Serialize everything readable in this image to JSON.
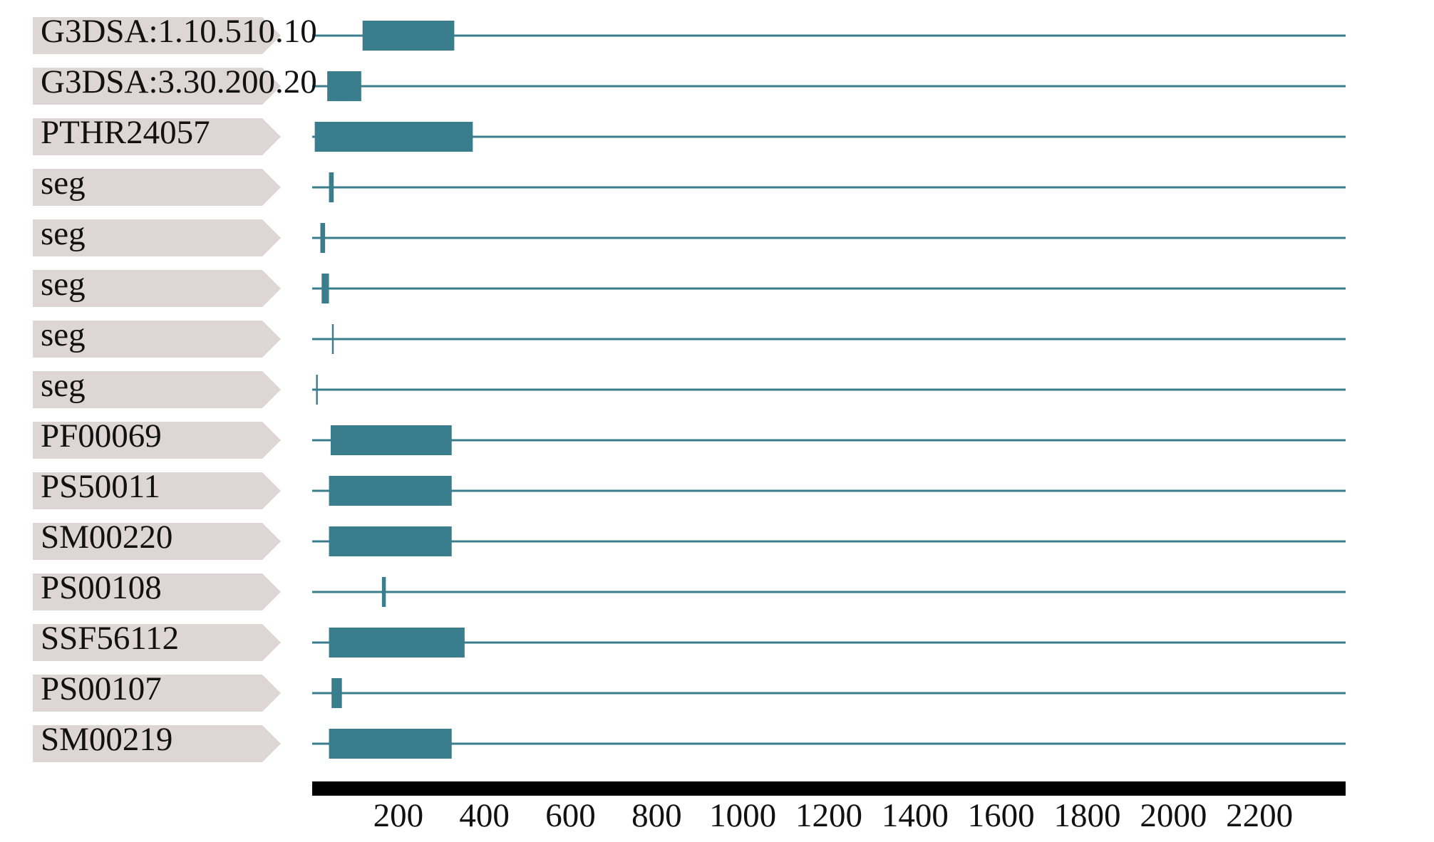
{
  "chart_data": {
    "type": "domains",
    "color": "#3a7e8d",
    "label_color": "#ddd6d5",
    "xlim": [
      0,
      2400
    ],
    "xticks": [
      200,
      400,
      600,
      800,
      1000,
      1200,
      1400,
      1600,
      1800,
      2000,
      2200
    ],
    "rows": [
      {
        "label": "G3DSA:1.10.510.10",
        "start": 117,
        "end": 330
      },
      {
        "label": "G3DSA:3.30.200.20",
        "start": 35,
        "end": 114
      },
      {
        "label": "PTHR24057",
        "start": 6,
        "end": 373
      },
      {
        "label": "seg",
        "start": 39,
        "end": 50
      },
      {
        "label": "seg",
        "start": 19,
        "end": 30
      },
      {
        "label": "seg",
        "start": 22,
        "end": 39
      },
      {
        "label": "seg",
        "start": 46,
        "end": 50
      },
      {
        "label": "seg",
        "start": 9,
        "end": 13
      },
      {
        "label": "PF00069",
        "start": 43,
        "end": 324
      },
      {
        "label": "PS50011",
        "start": 39,
        "end": 324
      },
      {
        "label": "SM00220",
        "start": 39,
        "end": 324
      },
      {
        "label": "PS00108",
        "start": 162,
        "end": 171
      },
      {
        "label": "SSF56112",
        "start": 39,
        "end": 354
      },
      {
        "label": "PS00107",
        "start": 45,
        "end": 69
      },
      {
        "label": "SM00219",
        "start": 39,
        "end": 324
      }
    ]
  }
}
